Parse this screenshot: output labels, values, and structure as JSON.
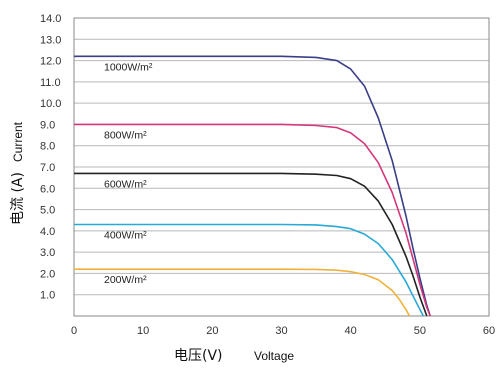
{
  "chart_data": {
    "type": "line",
    "title": "",
    "xlabel": {
      "zh": "电压(V)",
      "en": "Voltage"
    },
    "ylabel": {
      "zh": "电流 (A)",
      "en": "Current"
    },
    "xlim": [
      0,
      60
    ],
    "ylim": [
      0,
      14
    ],
    "x_ticks": [
      0,
      10,
      20,
      30,
      40,
      50,
      60
    ],
    "x_tick_labels": [
      "0",
      "10",
      "20",
      "30",
      "40",
      "50",
      "60"
    ],
    "y_ticks": [
      1,
      2,
      3,
      4,
      5,
      6,
      7,
      8,
      9,
      10,
      11,
      12,
      13,
      14
    ],
    "y_tick_labels": [
      "1.0",
      "2.0",
      "3.0",
      "4.0",
      "5.0",
      "6.0",
      "7.0",
      "8.0",
      "9.0",
      "10.0",
      "11.0",
      "12.0",
      "13.0",
      "14.0"
    ],
    "grid": "horizontal",
    "series": [
      {
        "name": "1000W/m²",
        "color": "#3a3f88",
        "x": [
          0,
          10,
          20,
          30,
          35,
          38,
          40,
          42,
          44,
          46,
          48,
          49,
          50,
          51,
          51.5
        ],
        "y": [
          12.2,
          12.2,
          12.2,
          12.2,
          12.15,
          12.0,
          11.6,
          10.8,
          9.3,
          7.3,
          4.7,
          3.2,
          1.8,
          0.5,
          0
        ]
      },
      {
        "name": "800W/m²",
        "color": "#d6377c",
        "x": [
          0,
          10,
          20,
          30,
          35,
          38,
          40,
          42,
          44,
          46,
          48,
          49,
          50,
          51,
          51.5
        ],
        "y": [
          9.0,
          9.0,
          9.0,
          9.0,
          8.95,
          8.85,
          8.6,
          8.1,
          7.2,
          5.8,
          3.9,
          2.7,
          1.5,
          0.4,
          0
        ]
      },
      {
        "name": "600W/m²",
        "color": "#222222",
        "x": [
          0,
          10,
          20,
          30,
          35,
          38,
          40,
          42,
          44,
          46,
          48,
          49,
          50,
          51
        ],
        "y": [
          6.7,
          6.7,
          6.7,
          6.7,
          6.66,
          6.6,
          6.45,
          6.1,
          5.4,
          4.3,
          2.8,
          1.9,
          0.9,
          0
        ]
      },
      {
        "name": "400W/m²",
        "color": "#28a9d6",
        "x": [
          0,
          10,
          20,
          30,
          35,
          38,
          40,
          42,
          44,
          46,
          48,
          49,
          50.5
        ],
        "y": [
          4.3,
          4.3,
          4.3,
          4.3,
          4.28,
          4.2,
          4.1,
          3.85,
          3.4,
          2.65,
          1.6,
          0.95,
          0
        ]
      },
      {
        "name": "200W/m²",
        "color": "#f0b23a",
        "x": [
          0,
          10,
          20,
          30,
          35,
          38,
          40,
          42,
          44,
          46,
          47,
          48,
          48.5
        ],
        "y": [
          2.2,
          2.2,
          2.2,
          2.2,
          2.19,
          2.15,
          2.08,
          1.95,
          1.7,
          1.2,
          0.8,
          0.3,
          0
        ]
      }
    ]
  }
}
